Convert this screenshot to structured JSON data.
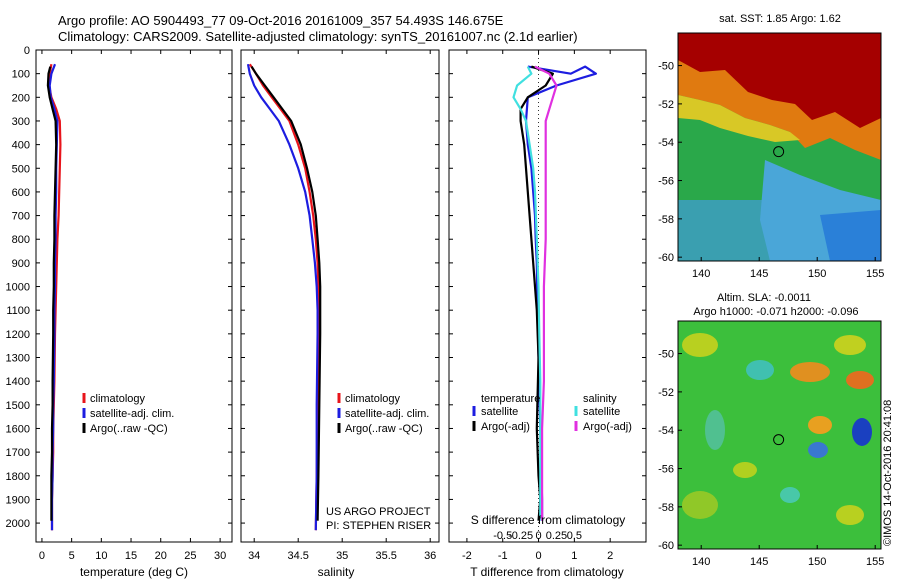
{
  "header": {
    "line1": "Argo profile: AO 5904493_77 09-Oct-2016 20161009_357 54.493S 146.675E",
    "line2": "Climatology: CARS2009. Satellite-adjusted climatology: synTS_20161007.nc (2.1d earlier)"
  },
  "credits": {
    "project": "US ARGO PROJECT",
    "pi": "PI: STEPHEN RISER",
    "imos": "©IMOS 14-Oct-2016 20:41:08"
  },
  "colors": {
    "climatology": "#e8141b",
    "satellite": "#1d1de0",
    "argo": "#000000",
    "sal_satellite": "#40e0e0",
    "sal_argo": "#e030e0",
    "sst_red": "#a50000",
    "sla_green": "#3cbf3c"
  },
  "chart_data": [
    {
      "type": "line",
      "xlabel": "temperature (deg C)",
      "ylabel": "",
      "xlim": [
        -1,
        32
      ],
      "ylim": [
        2080,
        0
      ],
      "xticks": [
        "0",
        "5",
        "10",
        "15",
        "20",
        "25",
        "30"
      ],
      "xtick_values": [
        0,
        5,
        10,
        15,
        20,
        25,
        30
      ],
      "yticks": [
        "0",
        "100",
        "200",
        "300",
        "400",
        "500",
        "600",
        "700",
        "800",
        "900",
        "1000",
        "1100",
        "1200",
        "1300",
        "1400",
        "1500",
        "1600",
        "1700",
        "1800",
        "1900",
        "2000"
      ],
      "legend": [
        "climatology",
        "satellite-adj. clim.",
        "Argo(..raw -QC)"
      ],
      "series": [
        {
          "name": "climatology",
          "x": [
            1.6,
            1.3,
            1.2,
            1.6,
            2.4,
            3.0,
            3.1,
            3.0,
            2.9,
            2.8,
            2.6,
            2.5,
            2.4,
            2.3,
            2.2,
            2.1,
            2.0,
            1.9,
            1.9,
            1.8,
            1.7,
            1.7
          ],
          "y": [
            60,
            100,
            150,
            200,
            250,
            300,
            400,
            500,
            600,
            700,
            800,
            900,
            1000,
            1100,
            1200,
            1400,
            1500,
            1600,
            1700,
            1800,
            1900,
            2030
          ]
        },
        {
          "name": "satellite-adj. clim.",
          "x": [
            2.2,
            1.6,
            1.3,
            1.5,
            2.1,
            2.6,
            2.5,
            2.4,
            2.4,
            2.3,
            2.3,
            2.2,
            2.2,
            2.1,
            2.1,
            2.0,
            1.9,
            1.9,
            1.8,
            1.8,
            1.7,
            1.7
          ],
          "y": [
            60,
            100,
            150,
            200,
            250,
            300,
            400,
            500,
            600,
            700,
            800,
            900,
            1000,
            1100,
            1200,
            1400,
            1500,
            1600,
            1700,
            1800,
            1900,
            2030
          ]
        },
        {
          "name": "Argo(..raw -QC)",
          "x": [
            1.4,
            1.1,
            1.0,
            1.3,
            1.8,
            2.3,
            2.4,
            2.3,
            2.2,
            2.1,
            2.1,
            2.0,
            2.0,
            1.9,
            1.9,
            1.8,
            1.8,
            1.7,
            1.7,
            1.6,
            1.6
          ],
          "y": [
            70,
            100,
            150,
            200,
            250,
            300,
            400,
            500,
            600,
            700,
            800,
            900,
            1000,
            1100,
            1200,
            1400,
            1500,
            1600,
            1700,
            1800,
            1990
          ]
        }
      ]
    },
    {
      "type": "line",
      "xlabel": "salinity",
      "ylabel": "",
      "xlim": [
        33.85,
        36.1
      ],
      "ylim": [
        2080,
        0
      ],
      "xticks": [
        "34",
        "34.5",
        "35",
        "35.5",
        "36"
      ],
      "xtick_values": [
        34,
        34.5,
        35,
        35.5,
        36
      ],
      "legend": [
        "climatology",
        "satellite-adj. clim.",
        "Argo(..raw -QC)"
      ],
      "series": [
        {
          "name": "climatology",
          "x": [
            33.95,
            34.02,
            34.1,
            34.2,
            34.3,
            34.4,
            34.5,
            34.58,
            34.63,
            34.67,
            34.7,
            34.72,
            34.73,
            34.73,
            34.73,
            34.72,
            34.71,
            34.7
          ],
          "y": [
            60,
            100,
            150,
            200,
            250,
            300,
            400,
            500,
            600,
            700,
            800,
            900,
            1000,
            1100,
            1200,
            1500,
            1800,
            2030
          ]
        },
        {
          "name": "satellite-adj. clim.",
          "x": [
            33.93,
            33.95,
            34.0,
            34.08,
            34.18,
            34.28,
            34.4,
            34.5,
            34.58,
            34.63,
            34.66,
            34.69,
            34.71,
            34.72,
            34.72,
            34.71,
            34.71,
            34.7
          ],
          "y": [
            60,
            100,
            150,
            200,
            250,
            300,
            400,
            500,
            600,
            700,
            800,
            900,
            1000,
            1100,
            1200,
            1500,
            1800,
            2030
          ]
        },
        {
          "name": "Argo(..raw -QC)",
          "x": [
            33.97,
            34.02,
            34.12,
            34.22,
            34.32,
            34.42,
            34.53,
            34.6,
            34.66,
            34.7,
            34.72,
            34.74,
            34.75,
            34.75,
            34.75,
            34.74,
            34.73,
            34.72
          ],
          "y": [
            70,
            100,
            150,
            200,
            250,
            300,
            400,
            500,
            600,
            700,
            800,
            900,
            1000,
            1100,
            1200,
            1500,
            1800,
            1990
          ]
        }
      ]
    },
    {
      "type": "line",
      "xlabel": "T difference from climatology",
      "xlabel2": "S difference from climatology",
      "xlim": [
        -2.5,
        3.0
      ],
      "ylim": [
        2080,
        0
      ],
      "xticks": [
        "-2",
        "-1",
        "0",
        "1",
        "2"
      ],
      "xtick_values": [
        -2,
        -1,
        0,
        1,
        2
      ],
      "sticks": [
        "-0.5",
        "-0.25",
        "0",
        "0.25",
        "0.5"
      ],
      "stick_values": [
        -1,
        -0.5,
        0,
        0.5,
        1
      ],
      "legend_headers": [
        "temperature",
        "salinity"
      ],
      "legend": [
        "satellite",
        "Argo(-adj)",
        "satellite",
        "Argo(-adj)"
      ],
      "series": [
        {
          "name": "satellite",
          "x": [
            -0.3,
            0.9,
            1.3,
            1.6,
            0.5,
            -0.3,
            -0.35,
            -0.3,
            -0.2,
            -0.15,
            -0.1,
            -0.08,
            -0.05,
            -0.03,
            0.0,
            0.05,
            0.08,
            0.1,
            0.1
          ],
          "y": [
            70,
            100,
            70,
            100,
            150,
            200,
            300,
            400,
            500,
            600,
            700,
            800,
            900,
            1100,
            1300,
            1600,
            1800,
            1900,
            1990
          ]
        },
        {
          "name": "Argo(-adj)",
          "x": [
            -0.2,
            0.4,
            0.2,
            -0.3,
            -0.5,
            -0.5,
            -0.4,
            -0.35,
            -0.3,
            -0.25,
            -0.2,
            -0.15,
            -0.1,
            -0.05,
            0.0,
            -0.05,
            0.0,
            0.05,
            0.0
          ],
          "y": [
            70,
            100,
            150,
            200,
            250,
            300,
            400,
            500,
            600,
            700,
            800,
            900,
            1000,
            1100,
            1300,
            1600,
            1800,
            1900,
            1990
          ]
        },
        {
          "name": "satellite",
          "x": [
            -0.3,
            -0.2,
            -0.6,
            -0.7,
            -0.5,
            -0.35,
            -0.25,
            -0.15,
            -0.1,
            -0.05,
            0.0,
            0.02,
            0.05,
            0.05,
            0.05,
            0.05,
            0.05
          ],
          "y": [
            70,
            100,
            150,
            200,
            250,
            300,
            400,
            500,
            600,
            800,
            1000,
            1200,
            1400,
            1600,
            1800,
            1900,
            1990
          ]
        },
        {
          "name": "Argo(-adj)",
          "x": [
            -0.1,
            0.3,
            0.5,
            0.4,
            0.3,
            0.2,
            0.2,
            0.2,
            0.2,
            0.2,
            0.15,
            0.15,
            0.15,
            0.1,
            0.1,
            0.1,
            0.1
          ],
          "y": [
            70,
            100,
            150,
            200,
            250,
            300,
            400,
            500,
            600,
            800,
            1000,
            1200,
            1400,
            1600,
            1800,
            1900,
            1990
          ]
        }
      ]
    },
    {
      "type": "heatmap",
      "title": "sat. SST: 1.85 Argo: 1.62",
      "xticks": [
        "140",
        "145",
        "150",
        "155"
      ],
      "xtick_values": [
        140,
        145,
        150,
        155
      ],
      "yticks": [
        "-50",
        "-52",
        "-54",
        "-56",
        "-58",
        "-60"
      ],
      "ytick_values": [
        -50,
        -52,
        -54,
        -56,
        -58,
        -60
      ],
      "xlim": [
        138,
        155.5
      ],
      "ylim": [
        -60.2,
        -48.3
      ],
      "marker": {
        "lon": 146.675,
        "lat": -54.493
      }
    },
    {
      "type": "heatmap",
      "title": "Altim. SLA: -0.0011",
      "subtitle": "Argo h1000: -0.071 h2000: -0.096",
      "xticks": [
        "140",
        "145",
        "150",
        "155"
      ],
      "xtick_values": [
        140,
        145,
        150,
        155
      ],
      "yticks": [
        "-50",
        "-52",
        "-54",
        "-56",
        "-58",
        "-60"
      ],
      "ytick_values": [
        -50,
        -52,
        -54,
        -56,
        -58,
        -60
      ],
      "xlim": [
        138,
        155.5
      ],
      "ylim": [
        -60.2,
        -48.3
      ],
      "marker": {
        "lon": 146.675,
        "lat": -54.493
      }
    }
  ]
}
